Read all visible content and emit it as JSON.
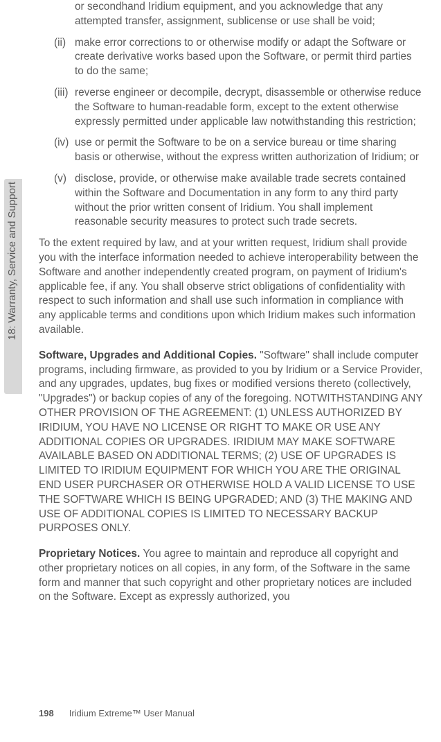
{
  "sideTab": {
    "label": "18: Warranty, Service and Support",
    "bg": "#d8d8d8"
  },
  "list": [
    {
      "num": "",
      "text": "or secondhand Iridium equipment, and you acknowledge that any attempted transfer, assignment, sublicense or use shall be void;"
    },
    {
      "num": "(ii)",
      "text": "make error corrections to or otherwise modify or adapt the Software or create derivative works based upon the Software, or permit third parties to do the same;"
    },
    {
      "num": "(iii)",
      "text": "reverse engineer or decompile, decrypt, disassemble or otherwise reduce the Software to human-readable form, except to the extent otherwise expressly permitted under applicable law notwithstanding this restriction;"
    },
    {
      "num": "(iv)",
      "text": "use or permit the Software to be on a service bureau or time sharing basis or otherwise, without the express written authorization of Iridium; or"
    },
    {
      "num": "(v)",
      "text": "disclose, provide, or otherwise make available trade secrets contained within the Software and Documentation in any form to any third party without the prior written consent of Iridium. You shall implement reasonable security measures to protect such trade secrets."
    }
  ],
  "para1": "To the extent required by law, and at your written request, Iridium shall provide you with the interface information needed to achieve interoperability between the Software and another independently created program, on payment of Iridium's applicable fee, if any. You shall observe strict obligations of confidentiality with respect to such information and shall use such information in compliance with any applicable terms and conditions upon which Iridium makes such information available.",
  "para2": {
    "bold": "Software, Upgrades and Additional Copies. ",
    "rest": "\"Software\" shall include computer programs, including firmware, as provided to you by Iridium or a Service Provider, and any upgrades, updates, bug fixes or modified versions thereto (collectively, \"Upgrades\") or backup copies of any of the foregoing. NOTWITHSTANDING ANY OTHER PROVISION OF THE AGREEMENT: (1) UNLESS AUTHORIZED BY IRIDIUM, YOU HAVE NO LICENSE OR RIGHT TO MAKE OR USE ANY ADDITIONAL COPIES OR UPGRADES. IRIDIUM MAY MAKE SOFTWARE AVAILABLE BASED ON ADDITIONAL TERMS; (2) USE OF UPGRADES IS LIMITED TO IRIDIUM EQUIPMENT FOR WHICH YOU ARE THE ORIGINAL END USER PURCHASER OR OTHERWISE HOLD A VALID LICENSE TO USE THE SOFTWARE WHICH IS BEING UPGRADED; AND (3) THE MAKING AND USE OF ADDITIONAL COPIES IS LIMITED TO NECESSARY BACKUP PURPOSES ONLY."
  },
  "para3": {
    "bold": "Proprietary Notices. ",
    "rest": "You agree to maintain and reproduce all copyright and other proprietary notices on all copies, in any form, of the Software in the same form and manner that such copyright and other proprietary notices are included on the Software. Except as expressly authorized, you"
  },
  "footer": {
    "page": "198",
    "title": "Iridium Extreme™ User Manual"
  },
  "style": {
    "textColor": "#5a5a5a",
    "background": "#ffffff",
    "fontSize": 15.4,
    "lineHeight": 1.35
  }
}
